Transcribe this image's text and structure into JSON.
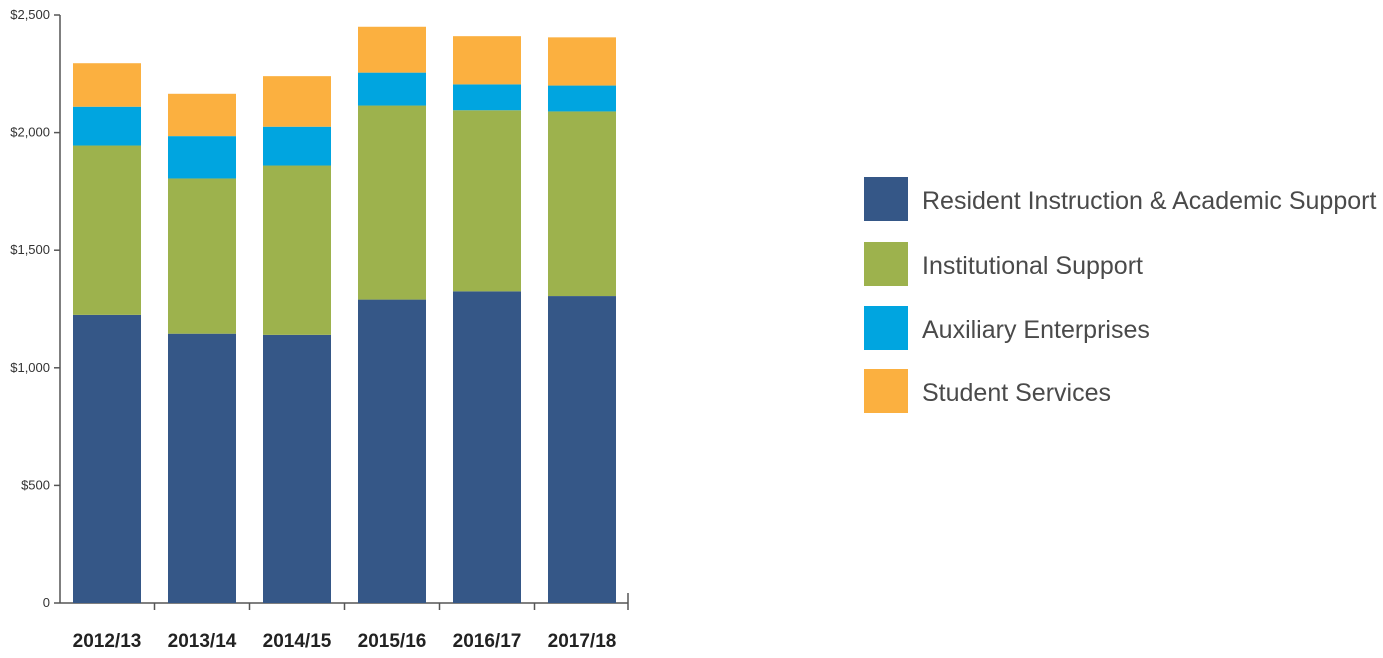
{
  "chart_data": {
    "type": "bar",
    "stacked": true,
    "categories": [
      "2012/13",
      "2013/14",
      "2014/15",
      "2015/16",
      "2016/17",
      "2017/18"
    ],
    "series": [
      {
        "name": "Resident Instruction & Academic Support",
        "color": "#355787",
        "values": [
          1225,
          1145,
          1140,
          1290,
          1325,
          1305
        ]
      },
      {
        "name": "Institutional Support",
        "color": "#9db24d",
        "values": [
          720,
          660,
          720,
          825,
          770,
          785
        ]
      },
      {
        "name": "Auxiliary Enterprises",
        "color": "#00a5e0",
        "values": [
          165,
          180,
          165,
          140,
          110,
          110
        ]
      },
      {
        "name": "Student Services",
        "color": "#fbb040",
        "values": [
          185,
          180,
          215,
          195,
          205,
          205
        ]
      }
    ],
    "y_ticks": [
      "0",
      "$500",
      "$1,000",
      "$1,500",
      "$2,000",
      "$2,500"
    ],
    "ylim": [
      0,
      2500
    ],
    "title": "",
    "xlabel": "",
    "ylabel": "",
    "legend_position": "right",
    "grid": false
  }
}
